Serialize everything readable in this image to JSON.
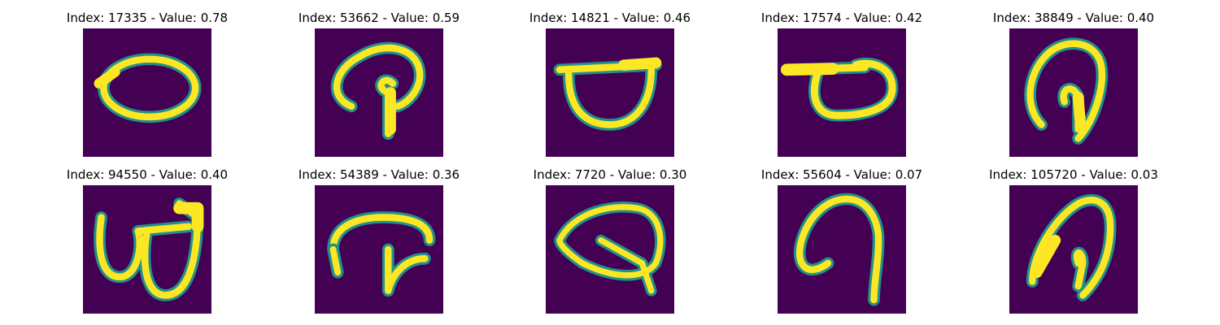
{
  "figure": {
    "colors": {
      "background": "#440154",
      "mid_low": "#31688e",
      "mid": "#21918c",
      "mid_high": "#5ec962",
      "high": "#fde725"
    },
    "panels": [
      {
        "title": "Index: 17335 - Value: 0.78",
        "glyph": "oval"
      },
      {
        "title": "Index: 53662 - Value: 0.59",
        "glyph": "hook-stem"
      },
      {
        "title": "Index: 14821 - Value: 0.46",
        "glyph": "bowl-bar"
      },
      {
        "title": "Index: 17574 - Value: 0.42",
        "glyph": "loop-bar"
      },
      {
        "title": "Index: 38849 - Value: 0.40",
        "glyph": "loop-inner"
      },
      {
        "title": "Index: 94550 - Value: 0.40",
        "glyph": "double-loop"
      },
      {
        "title": "Index: 54389 - Value: 0.36",
        "glyph": "arch-stem"
      },
      {
        "title": "Index: 7720 - Value: 0.30",
        "glyph": "loop-tail"
      },
      {
        "title": "Index: 55604 - Value: 0.07",
        "glyph": "hook"
      },
      {
        "title": "Index: 105720 - Value: 0.03",
        "glyph": "slanted-loop"
      }
    ]
  }
}
